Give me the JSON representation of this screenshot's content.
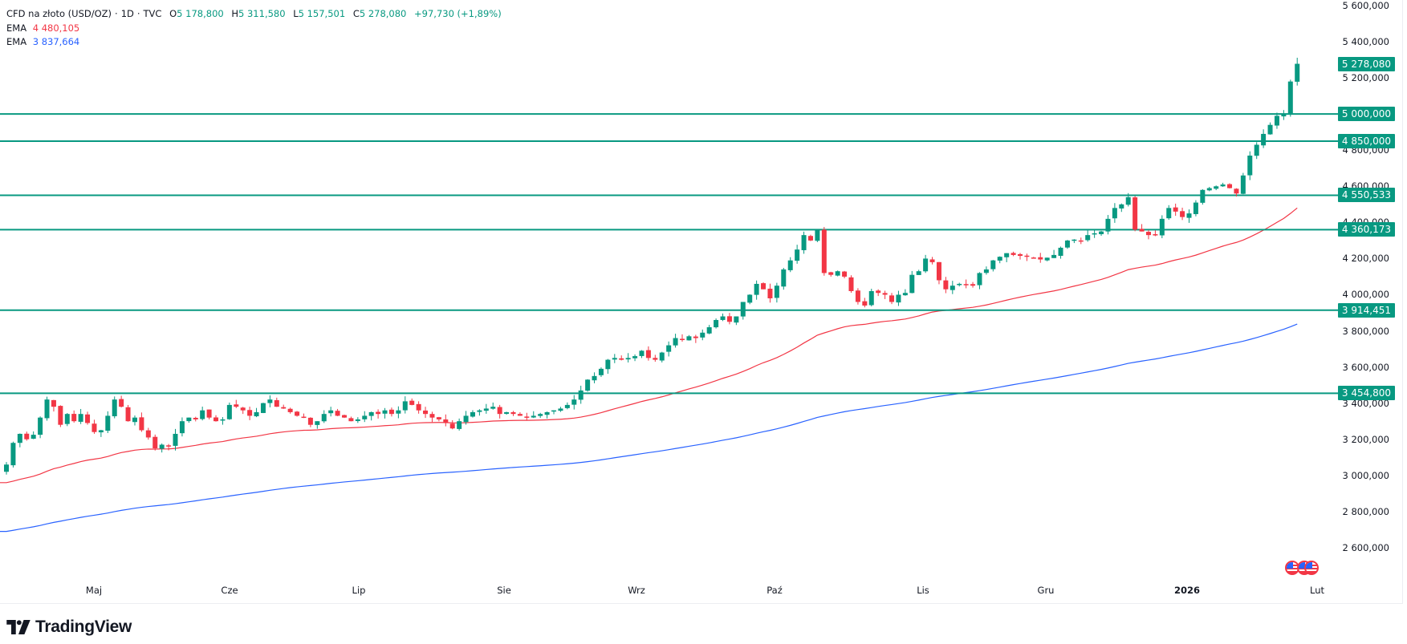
{
  "header": {
    "symbol": "CFD na złoto (USD/OZ)",
    "interval": "1D",
    "source": "TVC",
    "open_label": "O",
    "open": "5 178,800",
    "high_label": "H",
    "high": "5 311,580",
    "low_label": "L",
    "low": "5 157,501",
    "close_label": "C",
    "close": "5 278,080",
    "change": "+97,730 (+1,89%)"
  },
  "indicators": [
    {
      "name": "EMA",
      "value": "4 480,105",
      "color": "#f23645"
    },
    {
      "name": "EMA",
      "value": "3 837,664",
      "color": "#2962ff"
    }
  ],
  "colors": {
    "up": "#089981",
    "down": "#f23645",
    "ema_fast": "#f23645",
    "ema_slow": "#2962ff",
    "level_line": "#089981",
    "badge_bg": "#089981"
  },
  "price_axis": {
    "ticks": [
      "5 600,000",
      "5 400,000",
      "5 200,000",
      "4 800,000",
      "4 600,000",
      "4 400,000",
      "4 200,000",
      "4 000,000",
      "3 800,000",
      "3 600,000",
      "3 400,000",
      "3 200,000",
      "3 000,000",
      "2 800,000",
      "2 600,000"
    ],
    "tick_values": [
      5600,
      5400,
      5200,
      4800,
      4600,
      4400,
      4200,
      4000,
      3800,
      3600,
      3400,
      3200,
      3000,
      2800,
      2600
    ]
  },
  "badges": {
    "last_price": "5 278,080",
    "levels": [
      "5 000,000",
      "4 850,000",
      "4 550,533",
      "4 360,173",
      "3 914,451",
      "3 454,800"
    ]
  },
  "time_axis": {
    "labels": [
      "Maj",
      "Cze",
      "Lip",
      "Sie",
      "Wrz",
      "Paź",
      "Lis",
      "Gru",
      "2026",
      "Lut"
    ]
  },
  "branding": {
    "name": "TradingView"
  },
  "chart_data": {
    "type": "candlestick",
    "title": "CFD na złoto (USD/OZ) · 1D · TVC",
    "xlabel": "",
    "ylabel": "USD/OZ",
    "ylim": [
      2500,
      5650
    ],
    "x_tick_labels": [
      "Maj",
      "Cze",
      "Lip",
      "Sie",
      "Wrz",
      "Paź",
      "Lis",
      "Gru",
      "2026",
      "Lut"
    ],
    "last_candle": {
      "open": 5178.8,
      "high": 5311.58,
      "low": 5157.501,
      "close": 5278.08,
      "change": 97.73,
      "change_pct": 1.89
    },
    "horizontal_levels": [
      5000.0,
      4850.0,
      4550.533,
      4360.173,
      3914.451,
      3454.8
    ],
    "close_keypoints": [
      [
        0,
        3060
      ],
      [
        1,
        3180
      ],
      [
        2,
        3230
      ],
      [
        3,
        3200
      ],
      [
        4,
        3225
      ],
      [
        5,
        3320
      ],
      [
        6,
        3420
      ],
      [
        7,
        3380
      ],
      [
        8,
        3280
      ],
      [
        9,
        3340
      ],
      [
        10,
        3300
      ],
      [
        11,
        3340
      ],
      [
        12,
        3290
      ],
      [
        13,
        3240
      ],
      [
        14,
        3250
      ],
      [
        15,
        3330
      ],
      [
        16,
        3420
      ],
      [
        17,
        3380
      ],
      [
        18,
        3300
      ],
      [
        19,
        3320
      ],
      [
        20,
        3250
      ],
      [
        21,
        3210
      ],
      [
        22,
        3150
      ],
      [
        23,
        3170
      ],
      [
        24,
        3160
      ],
      [
        25,
        3230
      ],
      [
        26,
        3300
      ],
      [
        27,
        3320
      ],
      [
        28,
        3310
      ],
      [
        29,
        3360
      ],
      [
        30,
        3320
      ],
      [
        31,
        3300
      ],
      [
        32,
        3310
      ],
      [
        33,
        3390
      ],
      [
        34,
        3380
      ],
      [
        35,
        3360
      ],
      [
        36,
        3330
      ],
      [
        37,
        3350
      ],
      [
        38,
        3400
      ],
      [
        39,
        3420
      ],
      [
        40,
        3380
      ],
      [
        41,
        3370
      ],
      [
        42,
        3350
      ],
      [
        43,
        3330
      ],
      [
        44,
        3320
      ],
      [
        45,
        3280
      ],
      [
        46,
        3300
      ],
      [
        47,
        3340
      ],
      [
        48,
        3360
      ],
      [
        49,
        3330
      ],
      [
        50,
        3320
      ],
      [
        51,
        3300
      ],
      [
        52,
        3310
      ],
      [
        53,
        3330
      ],
      [
        54,
        3350
      ],
      [
        55,
        3340
      ],
      [
        56,
        3360
      ],
      [
        57,
        3340
      ],
      [
        58,
        3360
      ],
      [
        59,
        3410
      ],
      [
        60,
        3390
      ],
      [
        61,
        3360
      ],
      [
        62,
        3340
      ],
      [
        63,
        3320
      ],
      [
        64,
        3310
      ],
      [
        65,
        3290
      ],
      [
        66,
        3260
      ],
      [
        67,
        3300
      ],
      [
        68,
        3330
      ],
      [
        69,
        3350
      ],
      [
        70,
        3360
      ],
      [
        71,
        3370
      ],
      [
        72,
        3380
      ],
      [
        73,
        3340
      ],
      [
        74,
        3350
      ],
      [
        75,
        3340
      ],
      [
        76,
        3330
      ],
      [
        77,
        3320
      ],
      [
        78,
        3330
      ],
      [
        79,
        3340
      ],
      [
        80,
        3350
      ],
      [
        81,
        3360
      ],
      [
        82,
        3370
      ],
      [
        83,
        3390
      ],
      [
        84,
        3420
      ],
      [
        85,
        3470
      ],
      [
        86,
        3530
      ],
      [
        87,
        3550
      ],
      [
        88,
        3590
      ],
      [
        89,
        3640
      ],
      [
        90,
        3650
      ],
      [
        91,
        3640
      ],
      [
        92,
        3650
      ],
      [
        93,
        3660
      ],
      [
        94,
        3690
      ],
      [
        95,
        3650
      ],
      [
        96,
        3640
      ],
      [
        97,
        3680
      ],
      [
        98,
        3720
      ],
      [
        99,
        3760
      ],
      [
        100,
        3750
      ],
      [
        101,
        3770
      ],
      [
        102,
        3760
      ],
      [
        103,
        3790
      ],
      [
        104,
        3820
      ],
      [
        105,
        3860
      ],
      [
        106,
        3880
      ],
      [
        107,
        3850
      ],
      [
        108,
        3880
      ],
      [
        109,
        3960
      ],
      [
        110,
        4000
      ],
      [
        111,
        4060
      ],
      [
        112,
        4030
      ],
      [
        113,
        3980
      ],
      [
        114,
        4050
      ],
      [
        115,
        4140
      ],
      [
        116,
        4190
      ],
      [
        117,
        4250
      ],
      [
        118,
        4330
      ],
      [
        119,
        4300
      ],
      [
        120,
        4360
      ],
      [
        121,
        4120
      ],
      [
        122,
        4110
      ],
      [
        123,
        4130
      ],
      [
        124,
        4100
      ],
      [
        125,
        4020
      ],
      [
        126,
        3960
      ],
      [
        127,
        3940
      ],
      [
        128,
        4020
      ],
      [
        129,
        4010
      ],
      [
        130,
        4000
      ],
      [
        131,
        3960
      ],
      [
        132,
        4000
      ],
      [
        133,
        4010
      ],
      [
        134,
        4110
      ],
      [
        135,
        4130
      ],
      [
        136,
        4200
      ],
      [
        137,
        4180
      ],
      [
        138,
        4080
      ],
      [
        139,
        4030
      ],
      [
        140,
        4050
      ],
      [
        141,
        4060
      ],
      [
        142,
        4055
      ],
      [
        143,
        4050
      ],
      [
        144,
        4120
      ],
      [
        145,
        4140
      ],
      [
        146,
        4190
      ],
      [
        147,
        4210
      ],
      [
        148,
        4230
      ],
      [
        149,
        4220
      ],
      [
        150,
        4215
      ],
      [
        151,
        4210
      ],
      [
        152,
        4205
      ],
      [
        153,
        4195
      ],
      [
        154,
        4205
      ],
      [
        155,
        4220
      ],
      [
        156,
        4260
      ],
      [
        157,
        4300
      ],
      [
        158,
        4305
      ],
      [
        159,
        4300
      ],
      [
        160,
        4330
      ],
      [
        161,
        4340
      ],
      [
        162,
        4350
      ],
      [
        163,
        4420
      ],
      [
        164,
        4480
      ],
      [
        165,
        4500
      ],
      [
        166,
        4540
      ],
      [
        167,
        4360
      ],
      [
        168,
        4350
      ],
      [
        169,
        4330
      ],
      [
        170,
        4330
      ],
      [
        171,
        4420
      ],
      [
        172,
        4480
      ],
      [
        173,
        4460
      ],
      [
        174,
        4430
      ],
      [
        175,
        4450
      ],
      [
        176,
        4510
      ],
      [
        177,
        4580
      ],
      [
        178,
        4590
      ],
      [
        179,
        4600
      ],
      [
        180,
        4610
      ],
      [
        181,
        4590
      ],
      [
        182,
        4560
      ],
      [
        183,
        4660
      ],
      [
        184,
        4770
      ],
      [
        185,
        4830
      ],
      [
        186,
        4890
      ],
      [
        187,
        4940
      ],
      [
        188,
        4990
      ],
      [
        189,
        5000
      ],
      [
        190,
        5180
      ],
      [
        191,
        5278
      ]
    ],
    "ema_fast_endpoints": {
      "start": 2960,
      "end": 4480.105
    },
    "ema_slow_endpoints": {
      "start": 2690,
      "end": 3837.664
    }
  }
}
